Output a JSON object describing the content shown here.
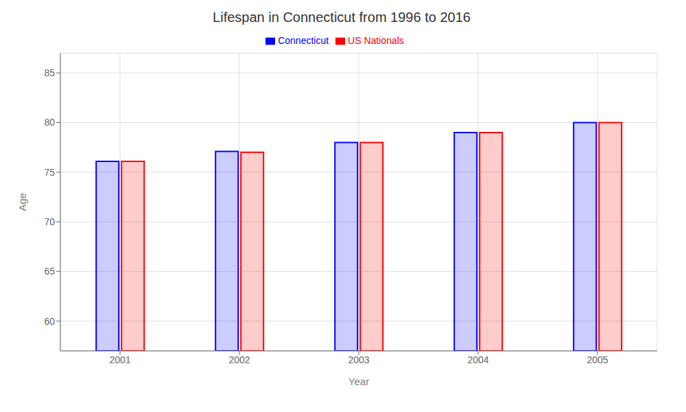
{
  "chart_data": {
    "type": "bar",
    "title": "Lifespan in Connecticut from 1996 to 2016",
    "x_label": "Year",
    "y_label": "Age",
    "categories": [
      "2001",
      "2002",
      "2003",
      "2004",
      "2005"
    ],
    "series": [
      {
        "name": "Connecticut",
        "color": "#0000ff",
        "values": [
          76.1,
          77.1,
          78.0,
          79.0,
          80.0
        ]
      },
      {
        "name": "US Nationals",
        "color": "#ff0000",
        "values": [
          76.1,
          77.0,
          78.0,
          79.0,
          80.0
        ]
      }
    ],
    "ylim": [
      57,
      87
    ],
    "yticks": [
      60,
      65,
      70,
      75,
      80,
      85
    ],
    "grid": true,
    "legend": "top"
  }
}
